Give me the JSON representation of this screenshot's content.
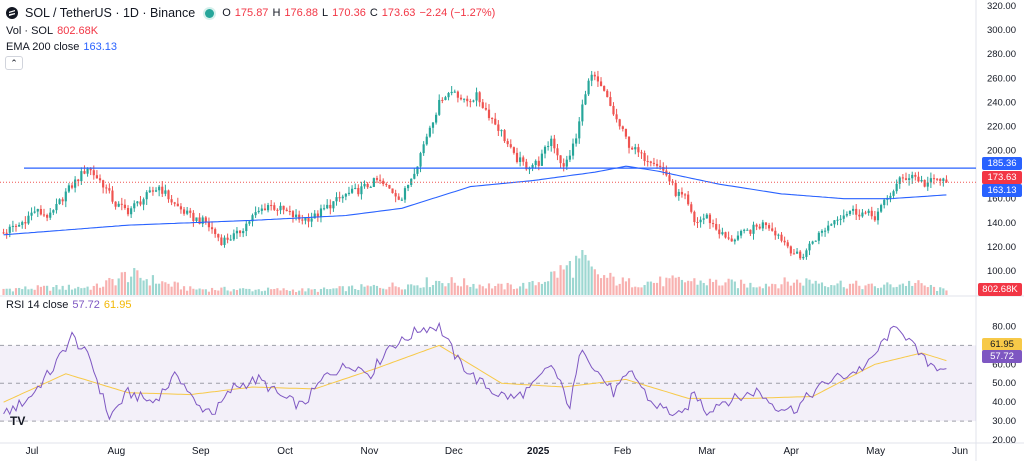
{
  "header": {
    "symbol": "SOL / TetherUS · 1D · Binance",
    "o_label": "O",
    "o": "175.87",
    "h_label": "H",
    "h": "176.88",
    "l_label": "L",
    "l": "170.36",
    "c_label": "C",
    "c": "173.63",
    "change": "−2.24 (−1.27%)",
    "vol_label": "Vol · SOL",
    "vol": "802.68K",
    "ema_label": "EMA 200 close",
    "ema": "163.13",
    "collapse": "⌃"
  },
  "rsi_legend": {
    "label": "RSI 14 close",
    "rsi": "57.72",
    "ma": "61.95"
  },
  "price_tags": {
    "line": "185.36",
    "close": "173.63",
    "ema": "163.13",
    "volume": "802.68K",
    "rsi": "57.72",
    "rsi_ma": "61.95"
  },
  "colors": {
    "up": "#26a69a",
    "down": "#ef5350",
    "ema": "#2962ff",
    "rsi": "#7e57c2",
    "rsi_ma": "#f7c948",
    "hline": "#2962ff"
  },
  "chart_data": {
    "type": "candlestick",
    "timeframe": "1D",
    "price_axis": {
      "ticks": [
        100,
        120,
        140,
        160,
        180,
        200,
        220,
        240,
        260,
        280,
        300,
        320
      ],
      "range": [
        80,
        320
      ]
    },
    "rsi_axis": {
      "ticks": [
        20,
        30,
        40,
        50,
        60,
        70,
        80
      ],
      "upper_band": 70,
      "lower_band": 30,
      "mid": 50,
      "range": [
        20,
        85
      ]
    },
    "x_labels": [
      "Jul",
      "Aug",
      "Sep",
      "Oct",
      "Nov",
      "Dec",
      "2025",
      "Feb",
      "Mar",
      "Apr",
      "May",
      "Jun"
    ],
    "horizontal_line": 185.36,
    "last": {
      "open": 175.87,
      "high": 176.88,
      "low": 170.36,
      "close": 173.63
    },
    "price_path": [
      [
        0,
        132
      ],
      [
        5,
        138
      ],
      [
        10,
        150
      ],
      [
        15,
        145
      ],
      [
        20,
        165
      ],
      [
        25,
        180
      ],
      [
        27,
        186
      ],
      [
        32,
        172
      ],
      [
        36,
        155
      ],
      [
        40,
        150
      ],
      [
        45,
        160
      ],
      [
        50,
        170
      ],
      [
        55,
        155
      ],
      [
        60,
        145
      ],
      [
        65,
        140
      ],
      [
        70,
        125
      ],
      [
        75,
        130
      ],
      [
        80,
        145
      ],
      [
        85,
        155
      ],
      [
        90,
        150
      ],
      [
        95,
        143
      ],
      [
        100,
        145
      ],
      [
        105,
        155
      ],
      [
        110,
        163
      ],
      [
        115,
        168
      ],
      [
        120,
        175
      ],
      [
        125,
        166
      ],
      [
        128,
        160
      ],
      [
        133,
        190
      ],
      [
        137,
        220
      ],
      [
        141,
        245
      ],
      [
        145,
        250
      ],
      [
        148,
        240
      ],
      [
        152,
        245
      ],
      [
        156,
        230
      ],
      [
        160,
        215
      ],
      [
        164,
        195
      ],
      [
        168,
        187
      ],
      [
        172,
        190
      ],
      [
        176,
        210
      ],
      [
        180,
        185
      ],
      [
        184,
        210
      ],
      [
        187,
        250
      ],
      [
        189,
        262
      ],
      [
        193,
        248
      ],
      [
        197,
        225
      ],
      [
        201,
        205
      ],
      [
        205,
        195
      ],
      [
        209,
        192
      ],
      [
        213,
        180
      ],
      [
        216,
        165
      ],
      [
        219,
        160
      ],
      [
        222,
        140
      ],
      [
        226,
        145
      ],
      [
        229,
        135
      ],
      [
        233,
        125
      ],
      [
        237,
        130
      ],
      [
        241,
        135
      ],
      [
        245,
        140
      ],
      [
        249,
        130
      ],
      [
        253,
        118
      ],
      [
        256,
        110
      ],
      [
        260,
        125
      ],
      [
        264,
        135
      ],
      [
        268,
        145
      ],
      [
        272,
        150
      ],
      [
        276,
        148
      ],
      [
        280,
        145
      ],
      [
        284,
        160
      ],
      [
        288,
        175
      ],
      [
        292,
        180
      ],
      [
        296,
        172
      ],
      [
        300,
        176
      ],
      [
        303,
        173.63
      ]
    ],
    "ema200_path": [
      [
        0,
        130
      ],
      [
        40,
        138
      ],
      [
        80,
        142
      ],
      [
        110,
        146
      ],
      [
        128,
        152
      ],
      [
        150,
        170
      ],
      [
        170,
        175
      ],
      [
        190,
        182
      ],
      [
        200,
        187
      ],
      [
        210,
        183
      ],
      [
        230,
        172
      ],
      [
        250,
        164
      ],
      [
        270,
        160
      ],
      [
        285,
        160
      ],
      [
        303,
        163.13
      ]
    ],
    "rsi_path": [
      [
        0,
        33
      ],
      [
        8,
        42
      ],
      [
        16,
        58
      ],
      [
        22,
        75
      ],
      [
        28,
        62
      ],
      [
        34,
        32
      ],
      [
        40,
        45
      ],
      [
        48,
        40
      ],
      [
        56,
        55
      ],
      [
        62,
        38
      ],
      [
        68,
        35
      ],
      [
        74,
        48
      ],
      [
        82,
        52
      ],
      [
        90,
        42
      ],
      [
        96,
        38
      ],
      [
        104,
        55
      ],
      [
        112,
        60
      ],
      [
        118,
        55
      ],
      [
        124,
        70
      ],
      [
        128,
        72
      ],
      [
        134,
        79
      ],
      [
        140,
        80
      ],
      [
        146,
        62
      ],
      [
        152,
        52
      ],
      [
        158,
        45
      ],
      [
        164,
        42
      ],
      [
        170,
        48
      ],
      [
        176,
        60
      ],
      [
        182,
        38
      ],
      [
        186,
        70
      ],
      [
        190,
        58
      ],
      [
        196,
        45
      ],
      [
        202,
        56
      ],
      [
        208,
        40
      ],
      [
        214,
        35
      ],
      [
        218,
        32
      ],
      [
        222,
        45
      ],
      [
        226,
        35
      ],
      [
        230,
        40
      ],
      [
        236,
        42
      ],
      [
        242,
        46
      ],
      [
        248,
        38
      ],
      [
        254,
        36
      ],
      [
        260,
        45
      ],
      [
        266,
        52
      ],
      [
        272,
        55
      ],
      [
        278,
        60
      ],
      [
        284,
        75
      ],
      [
        288,
        80
      ],
      [
        292,
        70
      ],
      [
        296,
        62
      ],
      [
        300,
        59
      ],
      [
        303,
        57.72
      ]
    ],
    "rsi_ma_path": [
      [
        0,
        40
      ],
      [
        20,
        55
      ],
      [
        40,
        45
      ],
      [
        60,
        44
      ],
      [
        80,
        48
      ],
      [
        100,
        47
      ],
      [
        120,
        58
      ],
      [
        140,
        70
      ],
      [
        160,
        50
      ],
      [
        180,
        48
      ],
      [
        200,
        52
      ],
      [
        220,
        42
      ],
      [
        240,
        42
      ],
      [
        260,
        43
      ],
      [
        280,
        60
      ],
      [
        295,
        66
      ],
      [
        303,
        61.95
      ]
    ],
    "volume_path": [
      [
        0,
        0.15
      ],
      [
        30,
        0.2
      ],
      [
        40,
        0.5
      ],
      [
        60,
        0.15
      ],
      [
        100,
        0.12
      ],
      [
        130,
        0.25
      ],
      [
        140,
        0.35
      ],
      [
        160,
        0.2
      ],
      [
        170,
        0.25
      ],
      [
        186,
        0.85
      ],
      [
        190,
        0.5
      ],
      [
        200,
        0.3
      ],
      [
        220,
        0.35
      ],
      [
        240,
        0.25
      ],
      [
        260,
        0.35
      ],
      [
        280,
        0.2
      ],
      [
        292,
        0.3
      ],
      [
        303,
        0.1
      ]
    ]
  }
}
